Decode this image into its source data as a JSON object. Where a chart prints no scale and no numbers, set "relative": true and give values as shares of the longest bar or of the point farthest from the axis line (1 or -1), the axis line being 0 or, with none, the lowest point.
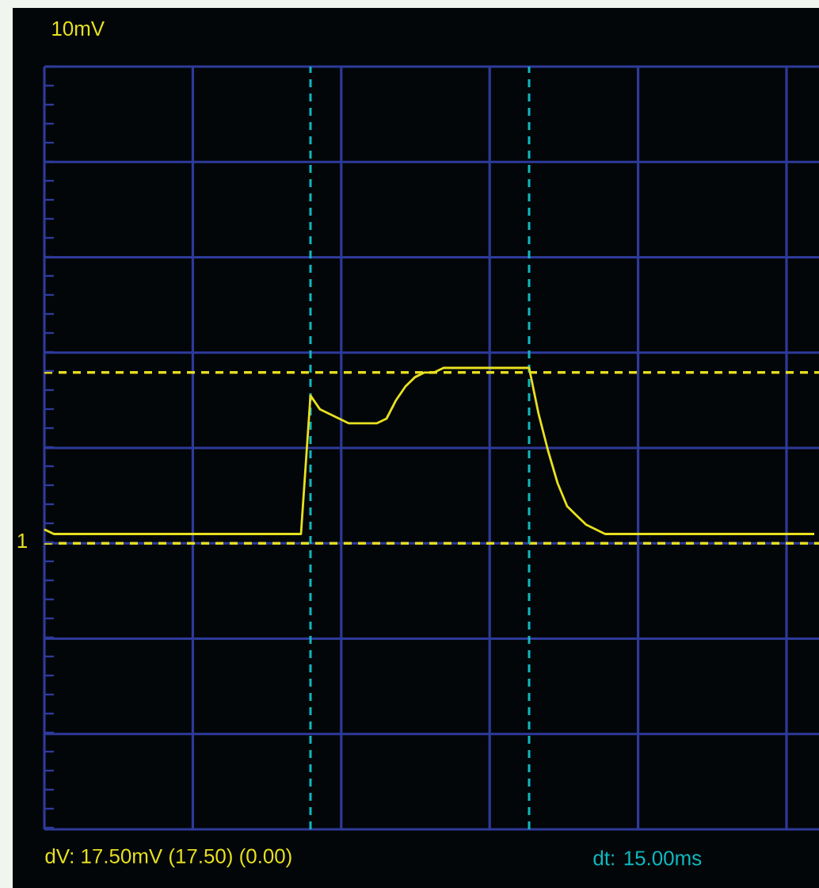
{
  "chart_data": {
    "type": "line",
    "relative": true,
    "grid": true,
    "marker": "none",
    "line_style": "solid",
    "categories": [
      null,
      null,
      null,
      null,
      null,
      null,
      null,
      null,
      null,
      null,
      null,
      null,
      null,
      null,
      null,
      null,
      null,
      null,
      null,
      null,
      null,
      null,
      null,
      null,
      null,
      null,
      null,
      null,
      null,
      null,
      null,
      null,
      null,
      null,
      null,
      null,
      null,
      null,
      null,
      null,
      null,
      null,
      null,
      null,
      null,
      null,
      null,
      null,
      null,
      null,
      null,
      null,
      null,
      null,
      null,
      null,
      null,
      null,
      null,
      null,
      null,
      null,
      null,
      null,
      null,
      null,
      null,
      null,
      null,
      null,
      null,
      null,
      null,
      null,
      null,
      null,
      null,
      null,
      null,
      null,
      null,
      null
    ],
    "series": [
      {
        "color": "#e8e020",
        "values": [
          0.65,
          0.64,
          0.64,
          0.64,
          0.64,
          0.64,
          0.64,
          0.64,
          0.64,
          0.64,
          0.64,
          0.64,
          0.64,
          0.64,
          0.64,
          0.64,
          0.64,
          0.64,
          0.64,
          0.64,
          0.64,
          0.64,
          0.64,
          0.64,
          0.64,
          0.64,
          0.64,
          0.64,
          0.94,
          0.91,
          0.9,
          0.89,
          0.88,
          0.88,
          0.88,
          0.88,
          0.89,
          0.93,
          0.96,
          0.98,
          0.99,
          0.99,
          1,
          1,
          1,
          1,
          1,
          1,
          1,
          1,
          1,
          1,
          0.9,
          0.82,
          0.75,
          0.7,
          0.68,
          0.66,
          0.65,
          0.64,
          0.64,
          0.64,
          0.64,
          0.64,
          0.64,
          0.64,
          0.64,
          0.64,
          0.64,
          0.64,
          0.64,
          0.64,
          0.64,
          0.64,
          0.64,
          0.64,
          0.64,
          0.64,
          0.64,
          0.64,
          0.64,
          0.64
        ]
      }
    ],
    "ref_lines": [
      {
        "axis": "y",
        "value": 0.62,
        "color": "#e8e020",
        "line_style": "dashed"
      },
      {
        "axis": "y",
        "value": 0.99,
        "color": "#e8e020",
        "line_style": "dashed"
      }
    ],
    "annotations": [
      "10mV",
      "1",
      "dV: 17.50mV  (17.50) (0.00)",
      "dt: 15.00ms"
    ]
  }
}
